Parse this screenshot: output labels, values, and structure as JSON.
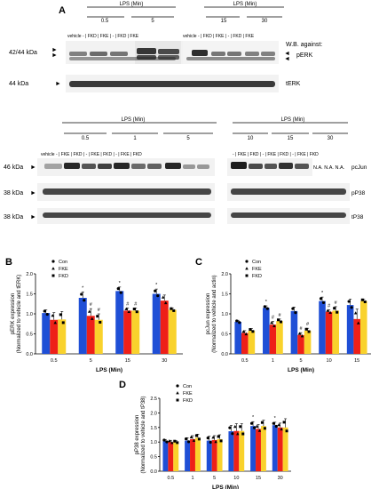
{
  "panel_a": {
    "letter": "A",
    "header": "LPS (Min)",
    "header_right": "LPS (Min)",
    "time_labels": [
      "0.5",
      "5",
      "15",
      "30"
    ],
    "lane_labels": [
      "vehicle",
      "-",
      "FKD",
      "FKE",
      "-",
      "FKD",
      "FKE",
      "vehicle",
      "-",
      "FKD",
      "FKE",
      "-",
      "FKD",
      "FKE"
    ],
    "lane_text_left": "vehicle  -  | FKD | FKE |  -  | FKD | FKE",
    "lane_text_right": "vehicle  -  | FKD | FKE |  -  | FKD | FKE",
    "blot1_kda": "42/44 kDa",
    "blot1_label_line1": "W.B. against:",
    "blot1_label_line2": "pERK",
    "blot2_kda": "44 kDa",
    "blot2_label": "tERK"
  },
  "panel_a2": {
    "header_left": "LPS (Min)",
    "header_right": "LPS (Min)",
    "time_left": [
      "0.5",
      "1",
      "5"
    ],
    "time_right": [
      "10",
      "15",
      "30"
    ],
    "lanes_left_text": "vehicle  -  | FKE | FKD |  -  | FKE | FKD |  -  | FKE | FKD",
    "lanes_right_text": "-  | FKE | FKD |  -  | FKE | FKD |  -  | FKE | FKD",
    "na_text": "N.A.  N.A.  N.A.",
    "blot_pcjun_kda": "46 kDa",
    "blot_pcjun_label": "pcJun",
    "blot_p38_kda": "38 kDa",
    "blot_p38_label": "pP38",
    "blot_tp38_kda": "38 kDa",
    "blot_tp38_label": "tP38"
  },
  "colors": {
    "con": "#1f4fd6",
    "fke": "#ee2018",
    "fkd": "#f9d22c"
  },
  "chart_data": [
    {
      "panel": "B",
      "type": "bar",
      "categories": [
        "0.5",
        "5",
        "15",
        "30"
      ],
      "series": [
        {
          "name": "Con",
          "values": [
            1.02,
            1.4,
            1.57,
            1.5
          ]
        },
        {
          "name": "FKE",
          "values": [
            0.85,
            0.95,
            1.08,
            1.33
          ]
        },
        {
          "name": "FKD",
          "values": [
            0.86,
            0.85,
            1.08,
            1.1
          ]
        }
      ],
      "errors": [
        [
          0.08,
          0.15,
          0.1,
          0.12
        ],
        [
          0.18,
          0.18,
          0.07,
          0.14
        ],
        [
          0.2,
          0.15,
          0.07,
          0.05
        ]
      ],
      "markers": [
        [
          "",
          "*",
          "*",
          "*"
        ],
        [
          "",
          "#",
          "#",
          ""
        ],
        [
          "",
          "#",
          "#",
          ""
        ]
      ],
      "ylabel_line1": "pERK expression",
      "ylabel_line2": "(Normalized to vehicle and tERK)",
      "xlabel": "LPS (Min)",
      "ylim": [
        0,
        2.0
      ],
      "yticks": [
        "0.0",
        "0.5",
        "1.0",
        "1.5",
        "2.0"
      ],
      "legend": [
        "Con",
        "FKE",
        "FKD"
      ]
    },
    {
      "panel": "C",
      "type": "bar",
      "categories": [
        "0.5",
        "1",
        "5",
        "10",
        "15"
      ],
      "series": [
        {
          "name": "Con",
          "values": [
            0.8,
            1.15,
            1.07,
            1.32,
            1.22
          ]
        },
        {
          "name": "FKE",
          "values": [
            0.52,
            0.73,
            0.47,
            1.05,
            0.87
          ]
        },
        {
          "name": "FKD",
          "values": [
            0.58,
            0.82,
            0.58,
            1.08,
            1.32
          ]
        }
      ],
      "errors": [
        [
          0.04,
          0.05,
          0.1,
          0.1,
          0.15
        ],
        [
          0.06,
          0.08,
          0.06,
          0.05,
          0.25
        ],
        [
          0.05,
          0.05,
          0.06,
          0.1,
          0.05
        ]
      ],
      "markers": [
        [
          "",
          "*",
          "",
          "*",
          ""
        ],
        [
          "",
          "#",
          "#",
          "#",
          ""
        ],
        [
          "",
          "#",
          "#",
          "#",
          ""
        ]
      ],
      "ylabel_line1": "pcJun expression",
      "ylabel_line2": "(Normalized to vehicle and actin)",
      "xlabel": "LPS (Min)",
      "ylim": [
        0,
        2.0
      ],
      "yticks": [
        "0.0",
        "0.5",
        "1.0",
        "1.5",
        "2.0"
      ],
      "legend": [
        "Con",
        "FKE",
        "FKD"
      ]
    },
    {
      "panel": "D",
      "type": "bar",
      "categories": [
        "0.5",
        "1",
        "5",
        "10",
        "15",
        "30"
      ],
      "series": [
        {
          "name": "Con",
          "values": [
            1.03,
            1.05,
            1.05,
            1.37,
            1.55,
            1.58
          ]
        },
        {
          "name": "FKE",
          "values": [
            1.0,
            1.1,
            1.07,
            1.38,
            1.45,
            1.5
          ]
        },
        {
          "name": "FKD",
          "values": [
            1.0,
            1.15,
            1.1,
            1.38,
            1.55,
            1.5
          ]
        }
      ],
      "errors": [
        [
          0.06,
          0.1,
          0.15,
          0.2,
          0.15,
          0.1
        ],
        [
          0.06,
          0.12,
          0.15,
          0.25,
          0.15,
          0.15
        ],
        [
          0.05,
          0.12,
          0.15,
          0.25,
          0.2,
          0.3
        ]
      ],
      "markers": [
        [
          "",
          "",
          "",
          "",
          "*",
          "*"
        ],
        [
          "",
          "",
          "",
          "",
          "",
          ""
        ],
        [
          "",
          "",
          "",
          "",
          "",
          ""
        ]
      ],
      "ylabel_line1": "pP38 expression",
      "ylabel_line2": "(Normalized to vehicle and tP38)",
      "xlabel": "LPS (Min)",
      "ylim": [
        0,
        2.5
      ],
      "yticks": [
        "0.0",
        "0.5",
        "1.0",
        "1.5",
        "2.0",
        "2.5"
      ],
      "legend": [
        "Con",
        "FKE",
        "FKD"
      ]
    }
  ]
}
